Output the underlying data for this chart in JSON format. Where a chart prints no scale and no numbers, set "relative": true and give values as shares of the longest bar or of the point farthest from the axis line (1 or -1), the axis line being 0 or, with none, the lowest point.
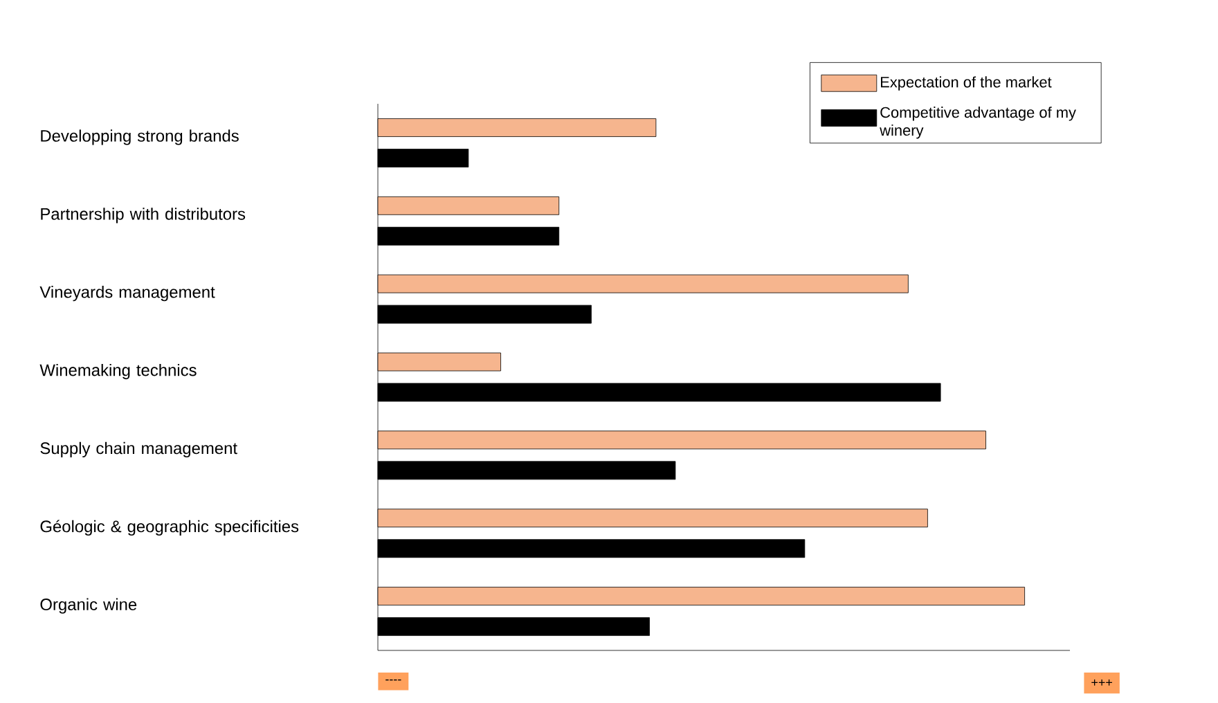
{
  "chart_data": {
    "type": "bar",
    "orientation": "horizontal",
    "relative": true,
    "categories": [
      "Developping strong brands",
      "Partnership with distributors",
      "Vineyards management",
      "Winemaking technics",
      "Supply chain management",
      "Géologic & geographic specificities",
      "Organic wine"
    ],
    "series": [
      {
        "name": "Expectation of the market",
        "color": "#f6b58e",
        "values": [
          0.43,
          0.28,
          0.82,
          0.19,
          0.94,
          0.85,
          1
        ]
      },
      {
        "name": "Competitive advantage of my winery",
        "color": "#000000",
        "values": [
          0.14,
          0.28,
          0.33,
          0.87,
          0.46,
          0.66,
          0.42
        ]
      }
    ],
    "annotations": [
      "----",
      "+++"
    ],
    "legend": "top right",
    "grid": false,
    "tick_labels": "y"
  }
}
